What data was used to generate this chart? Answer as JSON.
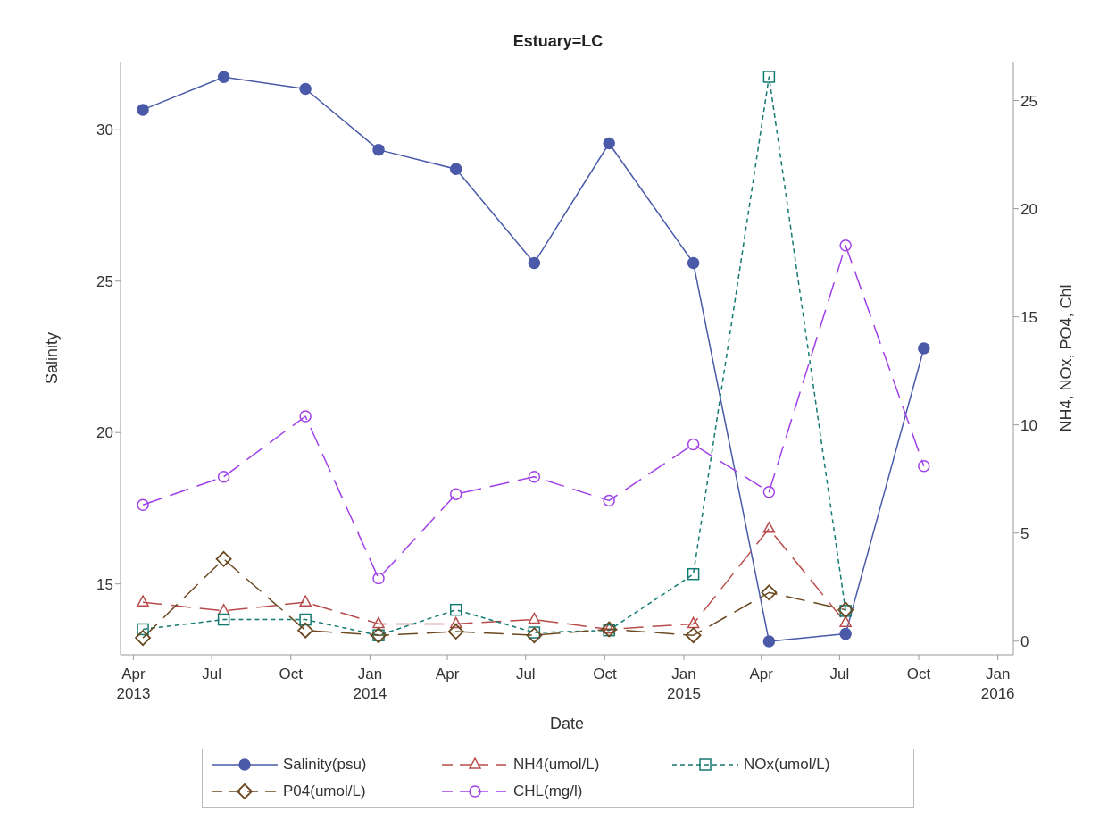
{
  "chart_data": {
    "type": "line",
    "title": "Estuary=LC",
    "xlabel": "Date",
    "ylabel": "Salinity",
    "y2label": "NH4, NOx, PO4, Chl",
    "x": [
      "2013-04-12",
      "2013-07-15",
      "2013-10-18",
      "2014-01-11",
      "2014-04-11",
      "2014-07-11",
      "2014-10-06",
      "2015-01-12",
      "2015-04-10",
      "2015-07-08",
      "2015-10-07"
    ],
    "series": [
      {
        "name": "Salinity(psu)",
        "color": "#4a5aa8",
        "marker": "circle",
        "line_style": "solid",
        "values": [
          30.66,
          31.74,
          31.35,
          29.34,
          28.7,
          25.6,
          29.55,
          25.6,
          13.1,
          13.35,
          22.78
        ]
      },
      {
        "name": "NH4(umol/L)",
        "color": "#b84c4c",
        "axis": "y2",
        "marker": "triangle",
        "line_style": "dashed",
        "values": [
          1.8,
          1.4,
          1.8,
          0.8,
          0.8,
          1.0,
          0.55,
          0.8,
          5.2,
          0.85,
          null
        ]
      },
      {
        "name": "NOx(umol/L)",
        "color": "#137a72",
        "axis": "y2",
        "marker": "square",
        "line_style": "dotted",
        "values": [
          0.55,
          1.0,
          1.0,
          0.27,
          1.45,
          0.4,
          0.5,
          3.1,
          26.1,
          1.4,
          null
        ]
      },
      {
        "name": "P04(umol/L)",
        "color": "#6b4a22",
        "axis": "y2",
        "marker": "diamond",
        "line_style": "dashed",
        "values": [
          0.15,
          3.8,
          0.5,
          0.27,
          0.44,
          0.27,
          0.55,
          0.27,
          2.25,
          1.45,
          null
        ]
      },
      {
        "name": "CHL(mg/l)",
        "color": "#a040e8",
        "axis": "y2",
        "marker": "circle",
        "line_style": "dashed",
        "values": [
          6.3,
          7.6,
          10.4,
          2.9,
          6.8,
          7.6,
          6.5,
          9.1,
          6.9,
          18.3,
          8.1
        ]
      }
    ],
    "xlim": [
      "2013-03-17",
      "2016-01-19"
    ],
    "xticks": [
      {
        "value": "2013-04-01",
        "label": "Apr\n2013"
      },
      {
        "value": "2013-07-01",
        "label": "Jul"
      },
      {
        "value": "2013-10-01",
        "label": "Oct"
      },
      {
        "value": "2014-01-01",
        "label": "Jan\n2014"
      },
      {
        "value": "2014-04-01",
        "label": "Apr"
      },
      {
        "value": "2014-07-01",
        "label": "Jul"
      },
      {
        "value": "2014-10-01",
        "label": "Oct"
      },
      {
        "value": "2015-01-01",
        "label": "Jan\n2015"
      },
      {
        "value": "2015-04-01",
        "label": "Apr"
      },
      {
        "value": "2015-07-01",
        "label": "Jul"
      },
      {
        "value": "2015-10-01",
        "label": "Oct"
      },
      {
        "value": "2016-01-01",
        "label": "Jan\n2016"
      }
    ],
    "ylim": [
      12.66,
      32.25
    ],
    "yticks": [
      15,
      20,
      25,
      30
    ],
    "y2lim": [
      -0.63,
      26.8
    ],
    "y2ticks": [
      0,
      5,
      10,
      15,
      20,
      25
    ],
    "legend": "bottom",
    "grid": false
  }
}
